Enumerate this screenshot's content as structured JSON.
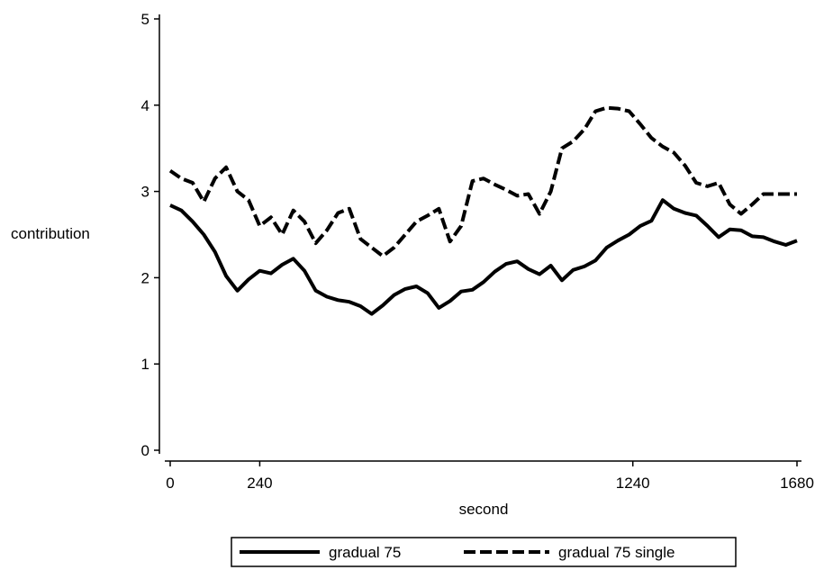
{
  "chart_data": {
    "type": "line",
    "title": "",
    "xlabel": "second",
    "ylabel": "contribution",
    "xlim": [
      0,
      1680
    ],
    "ylim": [
      0,
      5
    ],
    "x_ticks": [
      0,
      240,
      1240,
      1680
    ],
    "y_ticks": [
      0,
      1,
      2,
      3,
      4,
      5
    ],
    "grid": false,
    "legend_position": "bottom",
    "series": [
      {
        "name": "gradual 75",
        "style": "solid",
        "color": "#000000",
        "x": [
          0,
          30,
          60,
          90,
          120,
          150,
          180,
          210,
          240,
          270,
          300,
          330,
          360,
          390,
          420,
          450,
          480,
          510,
          540,
          570,
          600,
          630,
          660,
          690,
          720,
          750,
          780,
          810,
          840,
          870,
          900,
          930,
          960,
          990,
          1020,
          1050,
          1080,
          1110,
          1140,
          1170,
          1200,
          1230,
          1260,
          1290,
          1320,
          1350,
          1380,
          1410,
          1440,
          1470,
          1500,
          1530,
          1560,
          1590,
          1620,
          1650,
          1680
        ],
        "y": [
          2.84,
          2.78,
          2.65,
          2.5,
          2.3,
          2.02,
          1.85,
          1.98,
          2.08,
          2.05,
          2.15,
          2.22,
          2.08,
          1.85,
          1.78,
          1.74,
          1.72,
          1.67,
          1.58,
          1.68,
          1.8,
          1.87,
          1.9,
          1.82,
          1.65,
          1.73,
          1.84,
          1.86,
          1.95,
          2.07,
          2.16,
          2.19,
          2.1,
          2.04,
          2.14,
          1.97,
          2.09,
          2.13,
          2.2,
          2.35,
          2.43,
          2.5,
          2.6,
          2.66,
          2.9,
          2.8,
          2.75,
          2.72,
          2.6,
          2.47,
          2.56,
          2.55,
          2.48,
          2.47,
          2.42,
          2.38,
          2.43
        ]
      },
      {
        "name": "gradual 75 single",
        "style": "dashed",
        "color": "#000000",
        "x": [
          0,
          30,
          60,
          90,
          120,
          150,
          180,
          210,
          240,
          270,
          300,
          330,
          360,
          390,
          420,
          450,
          480,
          510,
          540,
          570,
          600,
          630,
          660,
          690,
          720,
          750,
          780,
          810,
          840,
          870,
          900,
          930,
          960,
          990,
          1020,
          1050,
          1080,
          1110,
          1140,
          1170,
          1200,
          1230,
          1260,
          1290,
          1320,
          1350,
          1380,
          1410,
          1440,
          1470,
          1500,
          1530,
          1560,
          1590,
          1620,
          1650,
          1680
        ],
        "y": [
          3.24,
          3.15,
          3.1,
          2.88,
          3.15,
          3.28,
          3.0,
          2.9,
          2.6,
          2.7,
          2.5,
          2.78,
          2.65,
          2.4,
          2.55,
          2.75,
          2.8,
          2.45,
          2.35,
          2.25,
          2.35,
          2.5,
          2.65,
          2.72,
          2.8,
          2.42,
          2.6,
          3.12,
          3.15,
          3.08,
          3.02,
          2.95,
          2.97,
          2.74,
          3.0,
          3.5,
          3.58,
          3.72,
          3.93,
          3.97,
          3.96,
          3.93,
          3.78,
          3.62,
          3.52,
          3.45,
          3.3,
          3.1,
          3.06,
          3.1,
          2.85,
          2.74,
          2.85,
          2.97,
          2.97,
          2.97,
          2.97
        ]
      }
    ]
  }
}
